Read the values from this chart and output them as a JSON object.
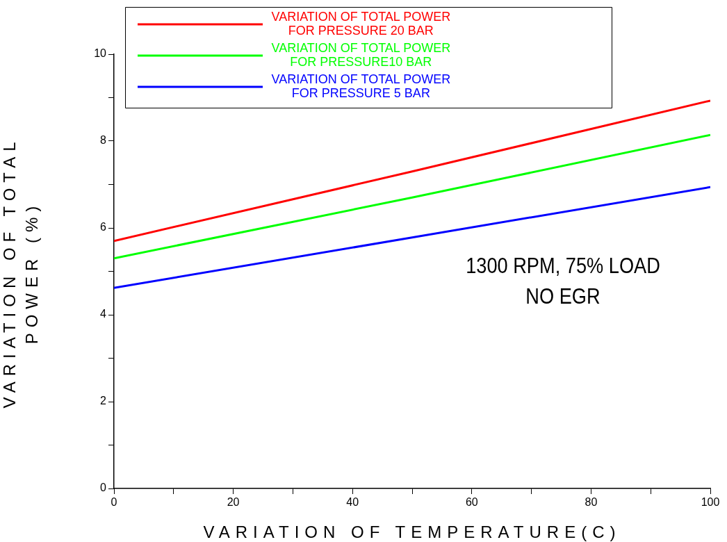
{
  "chart_data": {
    "type": "line",
    "xlabel": "VARIATION OF TEMPERATURE(C)",
    "ylabel": "VARIATION OF TOTAL POWER (%)",
    "x": [
      0,
      50,
      100
    ],
    "series": [
      {
        "name": "VARIATION OF TOTAL POWER FOR PRESSURE 20 BAR",
        "color": "#ff0000",
        "values": [
          5.7,
          7.3,
          8.93
        ]
      },
      {
        "name": "VARIATION OF TOTAL POWER FOR PRESSURE10 BAR",
        "color": "#00ff00",
        "values": [
          5.3,
          6.7,
          8.14
        ]
      },
      {
        "name": "VARIATION OF TOTAL POWER FOR PRESSURE 5 BAR",
        "color": "#0000ff",
        "values": [
          4.62,
          5.78,
          6.94
        ]
      }
    ],
    "xlim": [
      0,
      100
    ],
    "xticks": [
      0,
      {
        "value": 10,
        "label": null
      },
      20,
      {
        "value": 30,
        "label": null
      },
      40,
      {
        "value": 50,
        "label": null
      },
      60,
      {
        "value": 70,
        "label": null
      },
      80,
      {
        "value": 90,
        "label": null
      },
      100
    ],
    "ylim": [
      0,
      10
    ],
    "yticks": [
      0,
      {
        "value": 1,
        "label": null
      },
      2,
      {
        "value": 3,
        "label": null
      },
      4,
      {
        "value": 5,
        "label": null
      },
      6,
      {
        "value": 7,
        "label": null
      },
      8,
      {
        "value": 9,
        "label": null
      },
      10
    ],
    "grid": false,
    "legend": "top",
    "marker": "none",
    "line_style": "solid",
    "annotations": [
      "1300 RPM, 75% LOAD",
      "NO EGR"
    ]
  }
}
